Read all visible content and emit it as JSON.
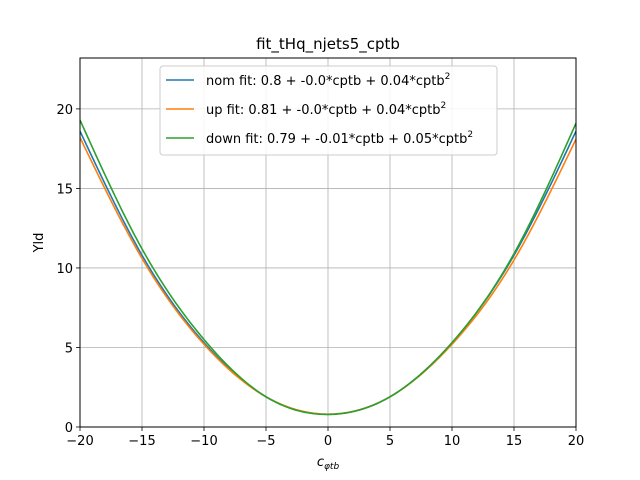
{
  "chart_data": {
    "type": "line",
    "title": "fit_tHq_njets5_cptb",
    "xlabel": "c",
    "xlabel_subscript": "φtb",
    "ylabel": "Yld",
    "xlim": [
      -20,
      20
    ],
    "ylim": [
      0,
      23.2
    ],
    "xticks": [
      -20,
      -15,
      -10,
      -5,
      0,
      5,
      10,
      15,
      20
    ],
    "xtick_labels": [
      "−20",
      "−15",
      "−10",
      "−5",
      "0",
      "5",
      "10",
      "15",
      "20"
    ],
    "yticks": [
      0,
      5,
      10,
      15,
      20
    ],
    "ytick_labels": [
      "0",
      "5",
      "10",
      "15",
      "20"
    ],
    "grid": true,
    "legend_position": "top-center",
    "x": [
      -20,
      -15,
      -10,
      -5,
      0,
      5,
      10,
      15,
      20
    ],
    "series": [
      {
        "name": "nom fit: 0.8 + -0.0*cptb + 0.04*cptb",
        "name_sup": "2",
        "color": "#1f77b4",
        "values": [
          18.6,
          10.8,
          5.3,
          1.9,
          0.8,
          1.9,
          5.3,
          10.8,
          18.6
        ]
      },
      {
        "name": "up fit: 0.81 + -0.0*cptb + 0.04*cptb",
        "name_sup": "2",
        "color": "#ff7f0e",
        "values": [
          18.2,
          10.6,
          5.2,
          1.9,
          0.81,
          1.9,
          5.2,
          10.5,
          18.1
        ]
      },
      {
        "name": "down fit: 0.79 + -0.01*cptb + 0.05*cptb",
        "name_sup": "2",
        "color": "#2ca02c",
        "values": [
          19.3,
          11.2,
          5.5,
          1.9,
          0.79,
          1.9,
          5.3,
          10.9,
          19.1
        ]
      }
    ]
  }
}
